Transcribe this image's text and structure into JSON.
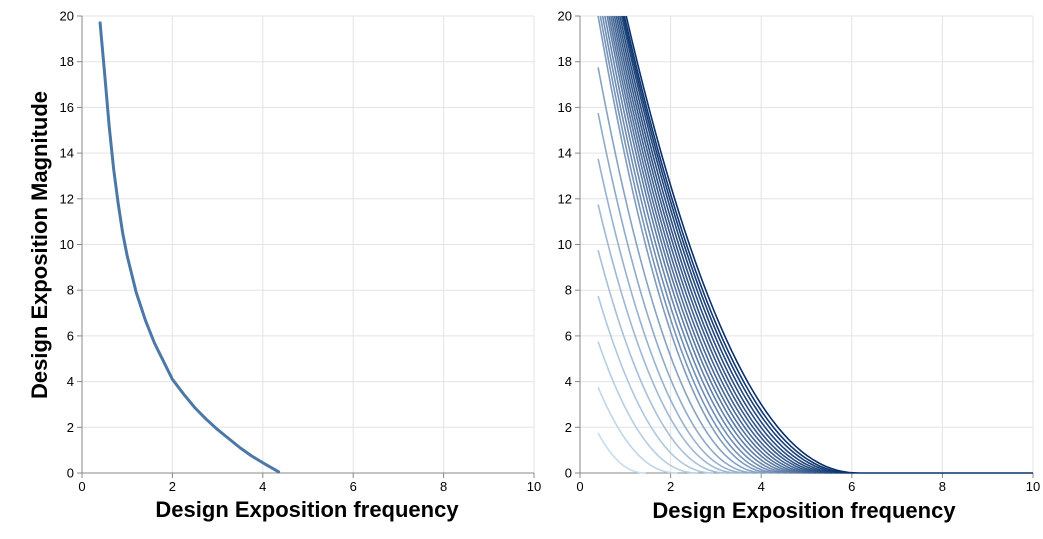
{
  "chart_data": [
    {
      "type": "line",
      "xlabel": "Design Exposition frequency",
      "ylabel": "Design Exposition Magnitude",
      "xlim": [
        0,
        10
      ],
      "ylim": [
        0,
        20
      ],
      "xticks": [
        "0",
        "2",
        "4",
        "6",
        "8",
        "10"
      ],
      "yticks": [
        "0",
        "2",
        "4",
        "6",
        "8",
        "10",
        "12",
        "14",
        "16",
        "18",
        "20"
      ],
      "grid": true,
      "series": [
        {
          "color": "#4c78a8",
          "points": [
            [
              0.4,
              19.7
            ],
            [
              0.5,
              17.5
            ],
            [
              0.6,
              15.2
            ],
            [
              0.7,
              13.3
            ],
            [
              0.8,
              11.8
            ],
            [
              0.9,
              10.5
            ],
            [
              1.0,
              9.5
            ],
            [
              1.2,
              7.9
            ],
            [
              1.4,
              6.7
            ],
            [
              1.6,
              5.7
            ],
            [
              1.8,
              4.9
            ],
            [
              2.0,
              4.1
            ],
            [
              2.25,
              3.45
            ],
            [
              2.5,
              2.85
            ],
            [
              2.75,
              2.35
            ],
            [
              3.0,
              1.9
            ],
            [
              3.25,
              1.5
            ],
            [
              3.5,
              1.1
            ],
            [
              3.75,
              0.75
            ],
            [
              4.0,
              0.45
            ],
            [
              4.2,
              0.22
            ],
            [
              4.35,
              0.05
            ]
          ]
        }
      ]
    },
    {
      "type": "line",
      "xlabel": "Design Exposition frequency",
      "ylabel": "",
      "xlim": [
        0,
        10
      ],
      "ylim": [
        0,
        20
      ],
      "xticks": [
        "0",
        "2",
        "4",
        "6",
        "8",
        "10"
      ],
      "yticks": [
        "0",
        "2",
        "4",
        "6",
        "8",
        "10",
        "12",
        "14",
        "16",
        "18",
        "20"
      ],
      "grid": true,
      "curve_family": {
        "count": 25,
        "x_start": 0.4,
        "y_start_values": [
          1.75,
          3.75,
          5.75,
          7.75,
          9.75,
          11.75,
          13.75,
          15.75,
          17.75,
          19.75,
          20,
          20,
          20,
          20,
          20,
          20,
          20,
          20,
          20,
          20,
          20,
          20,
          20,
          20,
          20
        ],
        "x_at_zero": [
          1.45,
          2.15,
          2.6,
          2.95,
          3.25,
          3.5,
          3.7,
          3.9,
          4.1,
          4.27,
          4.42,
          4.57,
          4.71,
          4.84,
          4.97,
          5.09,
          5.21,
          5.33,
          5.45,
          5.56,
          5.68,
          5.8,
          5.93,
          6.05,
          6.18
        ],
        "x_at_top": [
          null,
          null,
          null,
          null,
          null,
          null,
          null,
          null,
          null,
          0.4,
          0.45,
          0.5,
          0.55,
          0.6,
          0.64,
          0.68,
          0.72,
          0.76,
          0.8,
          0.84,
          0.88,
          0.92,
          0.95,
          0.98,
          1.02
        ],
        "baseline_to": 10,
        "color_light": "#c7dcef",
        "color_dark": "#08306b"
      }
    }
  ]
}
